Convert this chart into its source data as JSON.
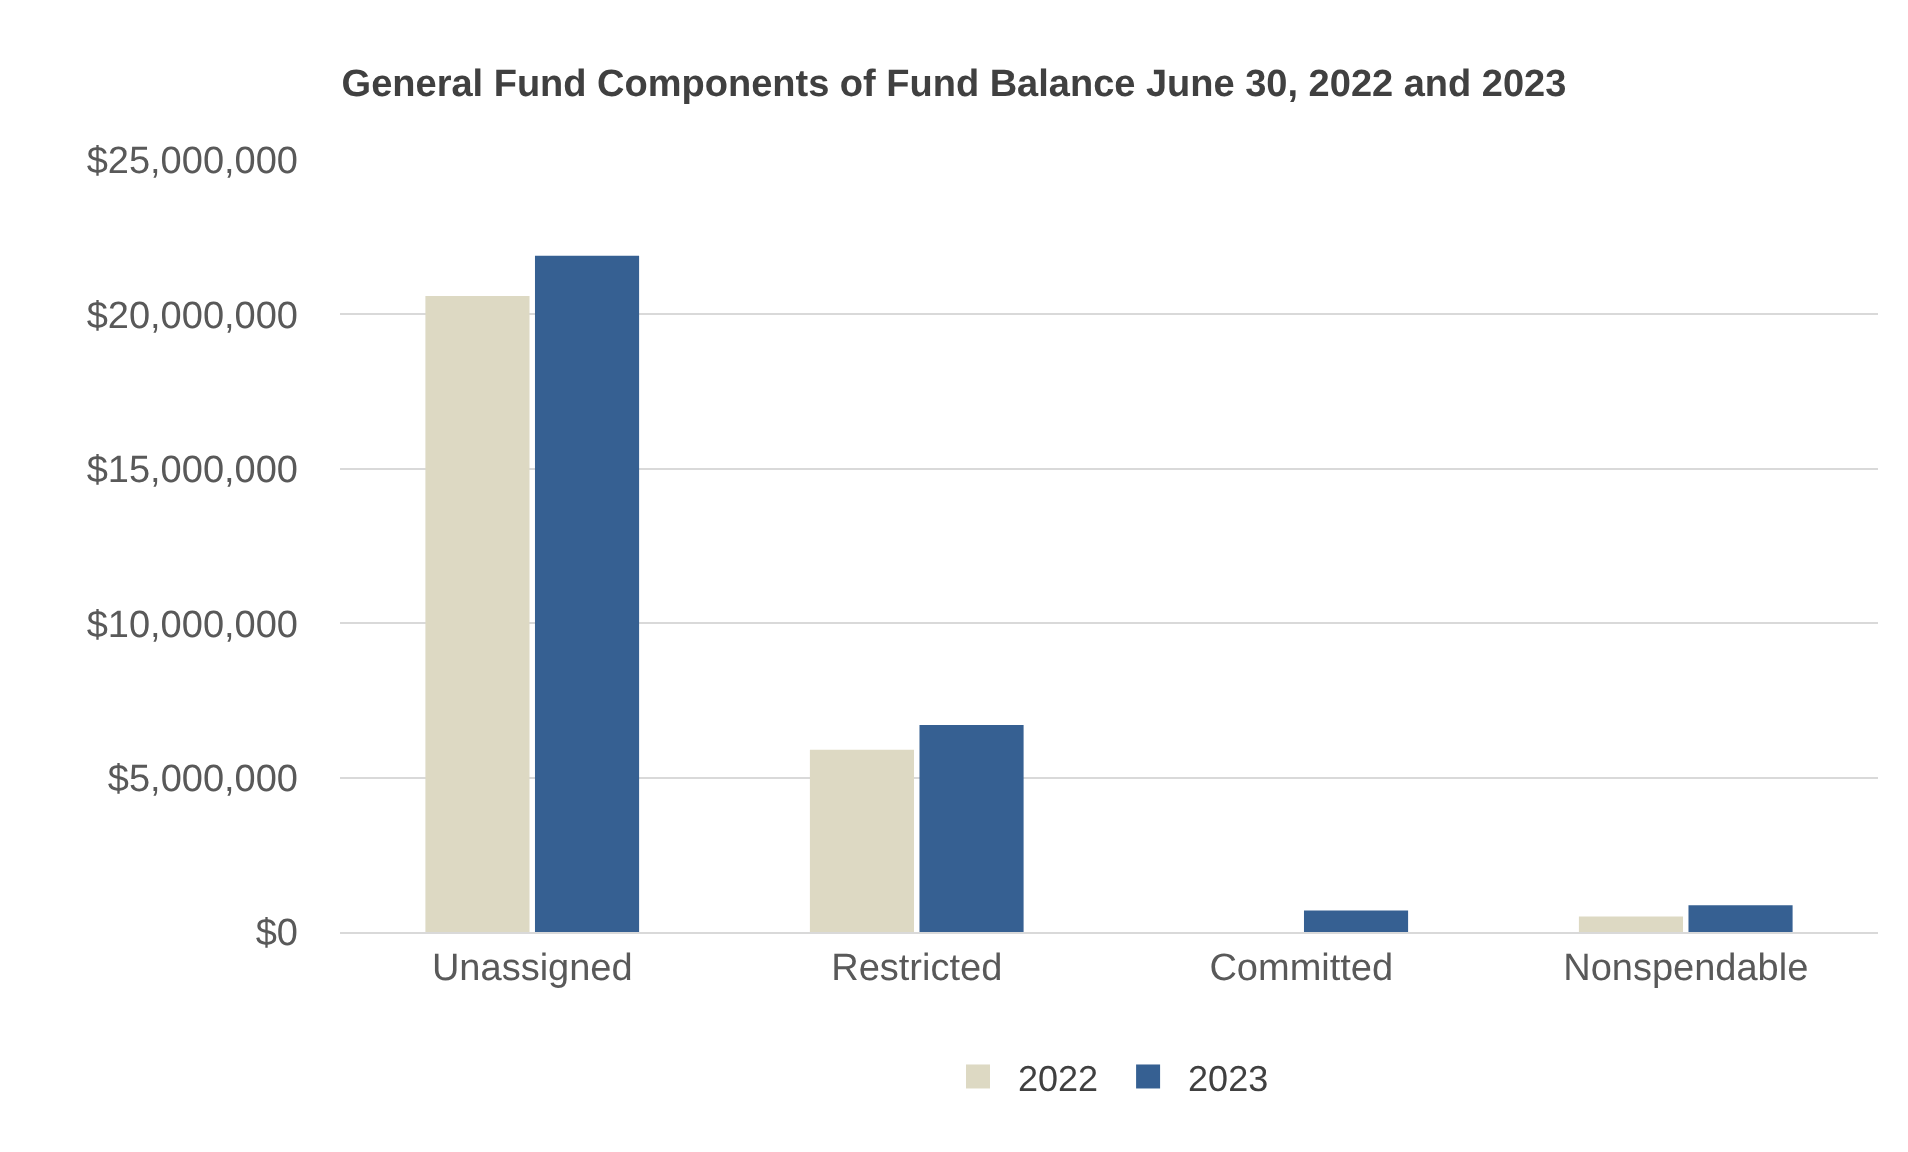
{
  "chart_data": {
    "type": "bar",
    "title": "General Fund Components of Fund Balance June 30, 2022 and 2023",
    "categories": [
      "Unassigned",
      "Restricted",
      "Committed",
      "Nonspendable"
    ],
    "series": [
      {
        "name": "2022",
        "color": "#ddd9c3",
        "values": [
          20600000,
          5900000,
          0,
          500000
        ]
      },
      {
        "name": "2023",
        "color": "#366092",
        "values": [
          21900000,
          6700000,
          700000,
          870000
        ]
      }
    ],
    "ylim": [
      0,
      25000000
    ],
    "yticks": [
      {
        "value": 0,
        "label": "$0"
      },
      {
        "value": 5000000,
        "label": "$5,000,000"
      },
      {
        "value": 10000000,
        "label": "$10,000,000"
      },
      {
        "value": 15000000,
        "label": "$15,000,000"
      },
      {
        "value": 20000000,
        "label": "$20,000,000"
      },
      {
        "value": 25000000,
        "label": "$25,000,000"
      }
    ],
    "grid": "y",
    "legend": "bottom"
  }
}
